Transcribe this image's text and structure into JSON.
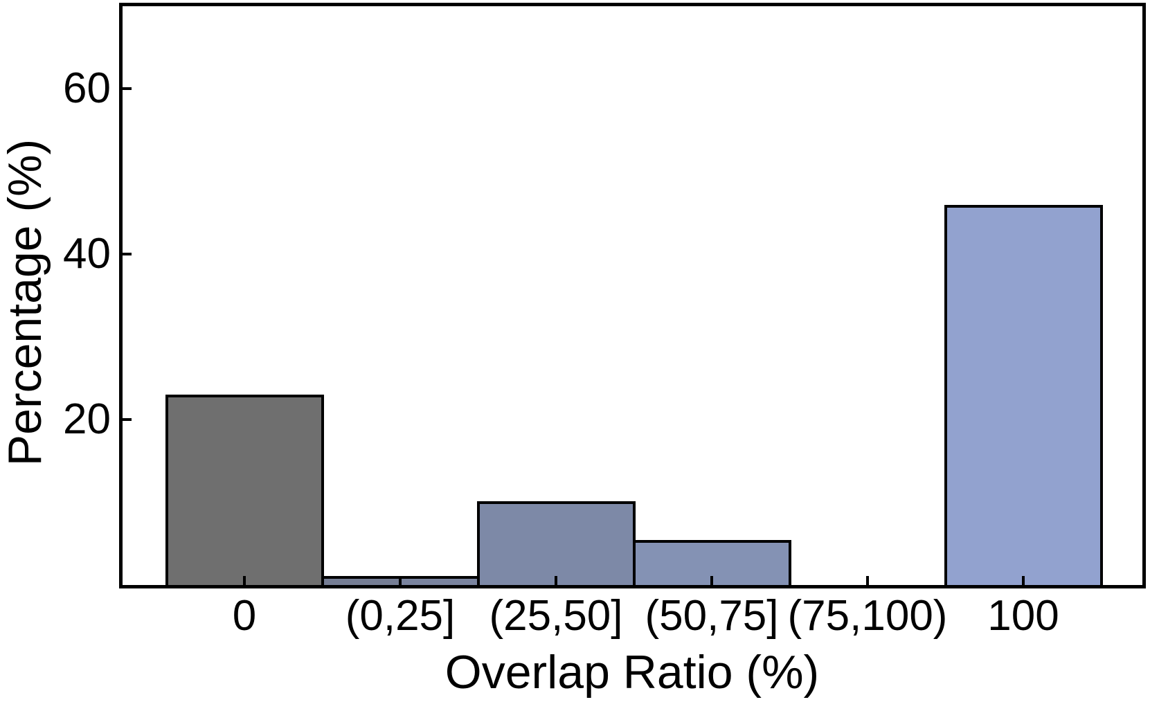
{
  "figure": {
    "background": "#ffffff",
    "frame_color": "#000000"
  },
  "chart_data": {
    "type": "bar",
    "title": "",
    "xlabel": "Overlap Ratio (%)",
    "ylabel": "Percentage (%)",
    "x_tick_labels": [
      "0",
      "(0,25]",
      "(25,50]",
      "(50,75]",
      "(75,100)",
      "100"
    ],
    "y_ticks": [
      20,
      40,
      60
    ],
    "ylim": [
      0,
      70
    ],
    "grid": false,
    "legend": null,
    "bar_edge_color": "#000000",
    "bars": [
      {
        "category": "0",
        "value": 22.9,
        "color": "#6F6F6F",
        "center": 0,
        "width": 1
      },
      {
        "category": "(0,25] left-half",
        "value": 0.9,
        "color": "#767E95",
        "center": 0.75,
        "width": 0.5
      },
      {
        "category": "(0,25] right-half",
        "value": 0.9,
        "color": "#7A849F",
        "center": 1.25,
        "width": 0.5
      },
      {
        "category": "(25,50]",
        "value": 10.0,
        "color": "#7D89A7",
        "center": 2,
        "width": 1
      },
      {
        "category": "(50,75]",
        "value": 5.3,
        "color": "#8492B4",
        "center": 3,
        "width": 1
      },
      {
        "category": "(75,100)",
        "value": 0,
        "color": null,
        "center": 4,
        "width": 1
      },
      {
        "category": "100",
        "value": 45.8,
        "color": "#92A2CF",
        "center": 5,
        "width": 1
      }
    ]
  }
}
